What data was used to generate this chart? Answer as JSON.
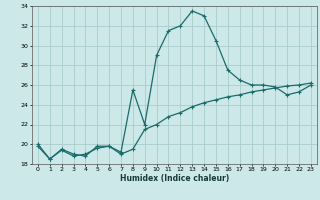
{
  "xlabel": "Humidex (Indice chaleur)",
  "xlim": [
    -0.5,
    23.5
  ],
  "ylim": [
    18,
    34
  ],
  "yticks": [
    18,
    20,
    22,
    24,
    26,
    28,
    30,
    32,
    34
  ],
  "xticks": [
    0,
    1,
    2,
    3,
    4,
    5,
    6,
    7,
    8,
    9,
    10,
    11,
    12,
    13,
    14,
    15,
    16,
    17,
    18,
    19,
    20,
    21,
    22,
    23
  ],
  "bg_color": "#cce8e8",
  "grid_color": "#aacccc",
  "line_color": "#1a6b6b",
  "line1_x": [
    0,
    1,
    2,
    3,
    4,
    5,
    6,
    7,
    8,
    9,
    10,
    11,
    12,
    13,
    14,
    15,
    16,
    17,
    18,
    19,
    20,
    21,
    22,
    23
  ],
  "line1_y": [
    20.0,
    18.5,
    19.5,
    19.0,
    18.8,
    19.8,
    19.8,
    19.2,
    25.5,
    22.0,
    29.0,
    31.5,
    32.0,
    33.5,
    33.0,
    30.5,
    27.5,
    26.5,
    26.0,
    26.0,
    25.8,
    25.0,
    25.3,
    26.0
  ],
  "line2_x": [
    0,
    1,
    2,
    3,
    4,
    5,
    6,
    7,
    8,
    9,
    10,
    11,
    12,
    13,
    14,
    15,
    16,
    17,
    18,
    19,
    20,
    21,
    22,
    23
  ],
  "line2_y": [
    19.8,
    18.5,
    19.4,
    18.8,
    19.0,
    19.6,
    19.8,
    19.0,
    19.5,
    21.5,
    22.0,
    22.8,
    23.2,
    23.8,
    24.2,
    24.5,
    24.8,
    25.0,
    25.3,
    25.5,
    25.7,
    25.9,
    26.0,
    26.2
  ]
}
